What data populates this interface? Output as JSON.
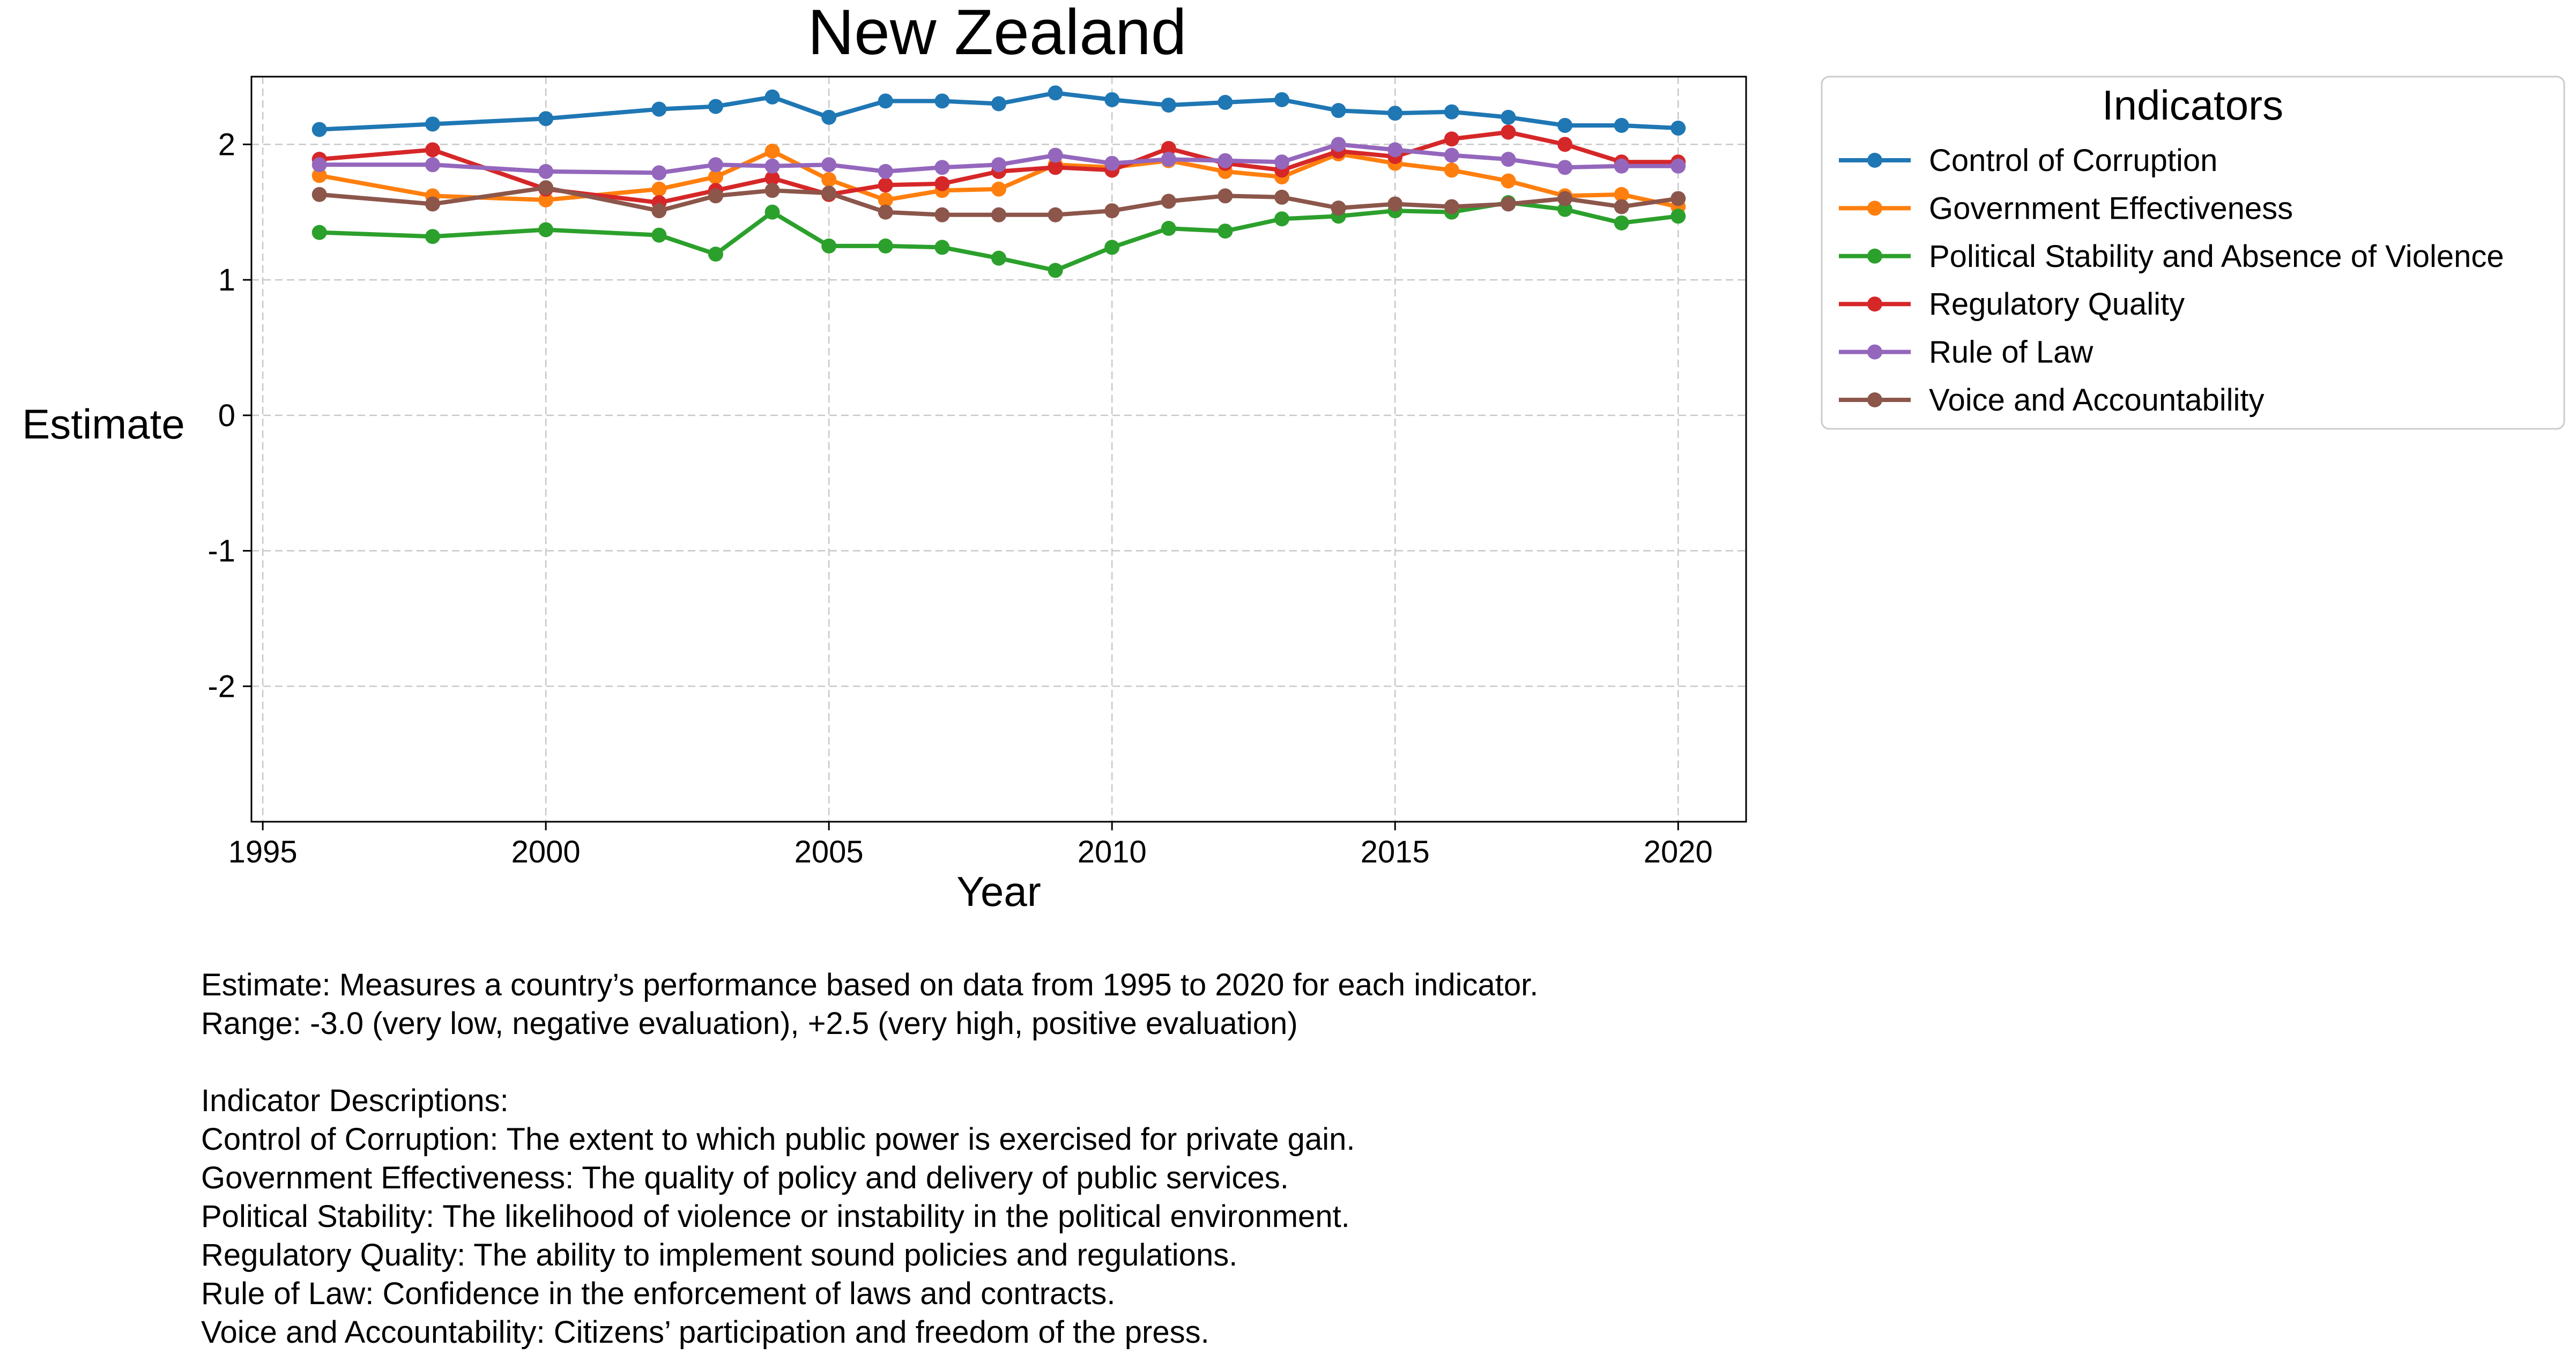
{
  "chart_data": {
    "type": "line",
    "title": "New Zealand",
    "xlabel": "Year",
    "ylabel": "Estimate",
    "xlim": [
      1994.8,
      2021.2
    ],
    "ylim": [
      -3.0,
      2.5
    ],
    "x_ticks": [
      1995,
      2000,
      2005,
      2010,
      2015,
      2020
    ],
    "x_tick_labels": [
      "1995",
      "2000",
      "2005",
      "2010",
      "2015",
      "2020"
    ],
    "y_ticks": [
      -2,
      -1,
      0,
      1,
      2
    ],
    "y_tick_labels": [
      "-2",
      "-1",
      "0",
      "1",
      "2"
    ],
    "grid": true,
    "legend_title": "Indicators",
    "legend_position": "outside right, top",
    "x": [
      1996,
      1998,
      2000,
      2002,
      2003,
      2004,
      2005,
      2006,
      2007,
      2008,
      2009,
      2010,
      2011,
      2012,
      2013,
      2014,
      2015,
      2016,
      2017,
      2018,
      2019,
      2020
    ],
    "series": [
      {
        "name": "Control of Corruption",
        "color": "#1f77b4",
        "values": [
          2.11,
          2.15,
          2.19,
          2.26,
          2.28,
          2.35,
          2.2,
          2.32,
          2.32,
          2.3,
          2.38,
          2.33,
          2.29,
          2.31,
          2.33,
          2.25,
          2.23,
          2.24,
          2.2,
          2.14,
          2.14,
          2.12
        ]
      },
      {
        "name": "Government Effectiveness",
        "color": "#ff7f0e",
        "values": [
          1.77,
          1.62,
          1.59,
          1.67,
          1.76,
          1.95,
          1.74,
          1.59,
          1.66,
          1.67,
          1.85,
          1.83,
          1.88,
          1.8,
          1.76,
          1.93,
          1.86,
          1.81,
          1.73,
          1.62,
          1.63,
          1.54
        ]
      },
      {
        "name": "Political Stability and Absence of Violence",
        "color": "#2ca02c",
        "values": [
          1.35,
          1.32,
          1.37,
          1.33,
          1.19,
          1.5,
          1.25,
          1.25,
          1.24,
          1.16,
          1.07,
          1.24,
          1.38,
          1.36,
          1.45,
          1.47,
          1.51,
          1.5,
          1.57,
          1.52,
          1.42,
          1.47
        ]
      },
      {
        "name": "Regulatory Quality",
        "color": "#d62728",
        "values": [
          1.89,
          1.96,
          1.67,
          1.57,
          1.66,
          1.75,
          1.63,
          1.7,
          1.71,
          1.8,
          1.83,
          1.81,
          1.97,
          1.86,
          1.81,
          1.95,
          1.91,
          2.04,
          2.09,
          2.0,
          1.87,
          1.87
        ]
      },
      {
        "name": "Rule of Law",
        "color": "#9467bd",
        "values": [
          1.85,
          1.85,
          1.8,
          1.79,
          1.85,
          1.84,
          1.85,
          1.8,
          1.83,
          1.85,
          1.92,
          1.86,
          1.89,
          1.88,
          1.87,
          2.0,
          1.96,
          1.92,
          1.89,
          1.83,
          1.84,
          1.84
        ]
      },
      {
        "name": "Voice and Accountability",
        "color": "#8c564b",
        "values": [
          1.63,
          1.56,
          1.68,
          1.51,
          1.62,
          1.66,
          1.64,
          1.5,
          1.48,
          1.48,
          1.48,
          1.51,
          1.58,
          1.62,
          1.61,
          1.53,
          1.56,
          1.54,
          1.56,
          1.6,
          1.54,
          1.6
        ]
      }
    ]
  },
  "notes": {
    "line1": "Estimate: Measures a country’s performance based on data from 1995 to 2020 for each indicator.",
    "line2": "Range: -3.0 (very low, negative evaluation), +2.5 (very high, positive evaluation)",
    "line3": "",
    "line4": "Indicator Descriptions:",
    "line5": "Control of Corruption: The extent to which public power is exercised for private gain.",
    "line6": "Government Effectiveness: The quality of policy and delivery of public services.",
    "line7": "Political Stability: The likelihood of violence or instability in the political environment.",
    "line8": "Regulatory Quality: The ability to implement sound policies and regulations.",
    "line9": "Rule of Law: Confidence in the enforcement of laws and contracts.",
    "line10": "Voice and Accountability: Citizens’ participation and freedom of the press."
  }
}
